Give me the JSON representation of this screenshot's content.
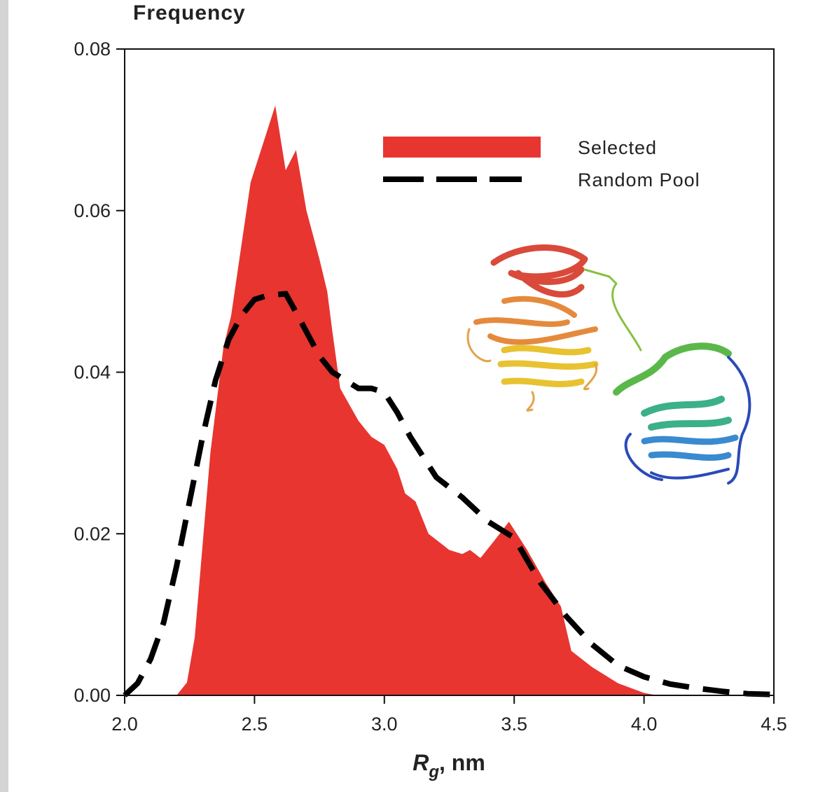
{
  "chart_data": {
    "type": "area_line",
    "ylabel": "Frequency",
    "xlabel": [
      "R",
      "g",
      ", nm"
    ],
    "xlim": [
      2.0,
      4.5
    ],
    "ylim": [
      0,
      0.08
    ],
    "xticks": [
      {
        "value": 2.0,
        "label": "2.0"
      },
      {
        "value": 2.5,
        "label": "2.5"
      },
      {
        "value": 3.0,
        "label": "3.0"
      },
      {
        "value": 3.5,
        "label": "3.5"
      },
      {
        "value": 4.0,
        "label": "4.0"
      },
      {
        "value": 4.5,
        "label": "4.5"
      }
    ],
    "yticks": [
      {
        "value": 0,
        "label": "0.00"
      },
      {
        "value": 0.02,
        "label": "0.02"
      },
      {
        "value": 0.04,
        "label": "0.04"
      },
      {
        "value": 0.06,
        "label": "0.06"
      },
      {
        "value": 0.08,
        "label": "0.08"
      }
    ],
    "series": [
      {
        "name": "Selected",
        "style": "area",
        "color": "#e83530",
        "x": [
          2.2,
          2.24,
          2.27,
          2.33,
          2.38,
          2.41,
          2.485,
          2.52,
          2.58,
          2.62,
          2.66,
          2.7,
          2.75,
          2.78,
          2.8,
          2.83,
          2.9,
          2.95,
          3.0,
          3.05,
          3.08,
          3.12,
          3.17,
          3.25,
          3.3,
          3.33,
          3.37,
          3.42,
          3.48,
          3.55,
          3.62,
          3.68,
          3.72,
          3.8,
          3.9,
          4.0,
          4.05
        ],
        "values": [
          0,
          0.0016,
          0.0072,
          0.03,
          0.043,
          0.047,
          0.0635,
          0.067,
          0.073,
          0.065,
          0.0675,
          0.06,
          0.054,
          0.05,
          0.045,
          0.038,
          0.034,
          0.032,
          0.031,
          0.028,
          0.025,
          0.024,
          0.02,
          0.018,
          0.0175,
          0.018,
          0.017,
          0.019,
          0.0215,
          0.018,
          0.014,
          0.011,
          0.0055,
          0.0035,
          0.0015,
          0.0003,
          0
        ]
      },
      {
        "name": "Random Pool",
        "style": "dashed",
        "color": "#000000",
        "x": [
          2.0,
          2.05,
          2.1,
          2.15,
          2.2,
          2.25,
          2.3,
          2.35,
          2.4,
          2.45,
          2.5,
          2.55,
          2.62,
          2.65,
          2.7,
          2.75,
          2.8,
          2.85,
          2.9,
          2.95,
          3.0,
          3.05,
          3.1,
          3.2,
          3.3,
          3.4,
          3.5,
          3.6,
          3.7,
          3.8,
          3.9,
          4.0,
          4.1,
          4.2,
          4.3,
          4.4,
          4.5
        ],
        "values": [
          0,
          0.0015,
          0.0045,
          0.009,
          0.016,
          0.024,
          0.032,
          0.039,
          0.044,
          0.047,
          0.049,
          0.0495,
          0.0497,
          0.048,
          0.045,
          0.042,
          0.04,
          0.039,
          0.038,
          0.038,
          0.0375,
          0.035,
          0.032,
          0.027,
          0.0245,
          0.0215,
          0.0195,
          0.014,
          0.0098,
          0.0063,
          0.0037,
          0.0023,
          0.0014,
          0.0009,
          0.0005,
          0.0002,
          0.0001
        ]
      }
    ]
  }
}
